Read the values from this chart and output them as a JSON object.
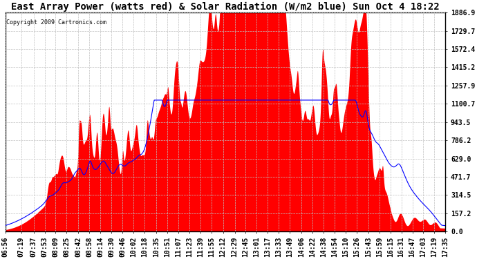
{
  "title": "East Array Power (watts red) & Solar Radiation (W/m2 blue) Sun Oct 4 18:22",
  "copyright": "Copyright 2009 Cartronics.com",
  "ymax": 1886.9,
  "ymin": 0.0,
  "yticks": [
    0.0,
    157.2,
    314.5,
    471.7,
    629.0,
    786.2,
    943.5,
    1100.7,
    1257.9,
    1415.2,
    1572.4,
    1729.7,
    1886.9
  ],
  "xtick_labels": [
    "06:56",
    "07:19",
    "07:37",
    "07:53",
    "08:09",
    "08:25",
    "08:42",
    "08:58",
    "09:14",
    "09:30",
    "09:46",
    "10:02",
    "10:18",
    "10:35",
    "10:51",
    "11:07",
    "11:23",
    "11:39",
    "11:55",
    "12:12",
    "12:29",
    "12:45",
    "13:01",
    "13:17",
    "13:33",
    "13:49",
    "14:06",
    "14:22",
    "14:38",
    "14:54",
    "15:10",
    "15:26",
    "15:43",
    "15:59",
    "16:15",
    "16:31",
    "16:47",
    "17:03",
    "17:19",
    "17:35"
  ],
  "background_color": "#ffffff",
  "plot_bg_color": "#ffffff",
  "grid_color": "#c0c0c0",
  "red_color": "#ff0000",
  "blue_color": "#0000ff",
  "title_fontsize": 10,
  "tick_fontsize": 7
}
